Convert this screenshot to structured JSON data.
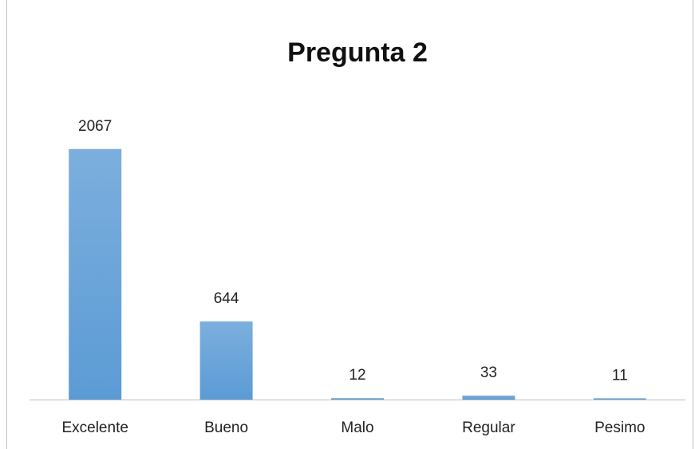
{
  "chart_data": {
    "type": "bar",
    "title": "Pregunta 2",
    "categories": [
      "Excelente",
      "Bueno",
      "Malo",
      "Regular",
      "Pesimo"
    ],
    "values": [
      2067,
      644,
      12,
      33,
      11
    ],
    "color": "#5b9bd5",
    "ylim": [
      0,
      2500
    ]
  }
}
